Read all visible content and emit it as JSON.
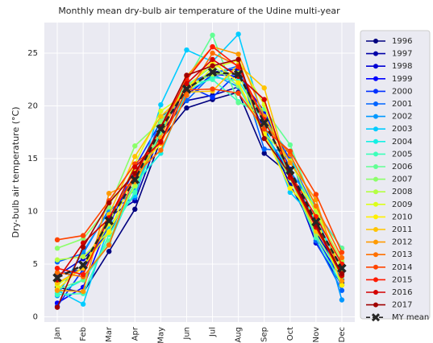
{
  "chart_data": {
    "type": "line",
    "title": "Monthly mean dry-bulb air temperature of the Udine multi-year",
    "y_label": "Dry-bulb air temperature (°C)",
    "categories": [
      "Jan",
      "Feb",
      "Mar",
      "Apr",
      "May",
      "Jun",
      "Jul",
      "Aug",
      "Sep",
      "Oct",
      "Nov",
      "Dec"
    ],
    "ylim": [
      -0.5,
      27.9
    ],
    "yticks": [
      0,
      5,
      10,
      15,
      20,
      25
    ],
    "grid": true,
    "legend": "outside right",
    "series": [
      {
        "name": "1996",
        "color": "#00007f",
        "values": [
          2.8,
          2.3,
          6.2,
          10.2,
          16.8,
          19.8,
          20.6,
          21.3,
          15.5,
          13.5,
          8.9,
          3.2
        ]
      },
      {
        "name": "1997",
        "color": "#0000a8",
        "values": [
          4.0,
          4.5,
          9.5,
          11.0,
          17.5,
          20.5,
          21.0,
          21.8,
          18.0,
          12.5,
          8.0,
          4.0
        ]
      },
      {
        "name": "1998",
        "color": "#0000d4",
        "values": [
          3.9,
          5.5,
          7.9,
          12.7,
          17.5,
          22.0,
          23.2,
          23.5,
          17.5,
          13.5,
          7.0,
          3.0
        ]
      },
      {
        "name": "1999",
        "color": "#0000ff",
        "values": [
          1.3,
          2.8,
          9.0,
          13.3,
          18.1,
          21.0,
          23.0,
          22.8,
          19.5,
          14.0,
          7.5,
          3.5
        ]
      },
      {
        "name": "2000",
        "color": "#0030ff",
        "values": [
          1.0,
          4.5,
          8.6,
          14.2,
          18.5,
          21.9,
          20.8,
          23.2,
          18.9,
          14.9,
          10.0,
          6.5
        ]
      },
      {
        "name": "2001",
        "color": "#0064ff",
        "values": [
          5.2,
          6.0,
          10.2,
          11.3,
          19.0,
          20.5,
          23.0,
          23.8,
          15.9,
          15.7,
          7.2,
          2.5
        ]
      },
      {
        "name": "2002",
        "color": "#0098ff",
        "values": [
          2.0,
          6.2,
          10.0,
          12.0,
          17.7,
          22.1,
          23.0,
          21.8,
          17.4,
          13.8,
          10.4,
          1.6
        ]
      },
      {
        "name": "2003",
        "color": "#00ccff",
        "values": [
          2.5,
          1.2,
          8.6,
          11.5,
          20.1,
          25.3,
          24.2,
          26.8,
          18.3,
          11.8,
          9.2,
          4.5
        ]
      },
      {
        "name": "2004",
        "color": "#14f0e4",
        "values": [
          2.2,
          3.5,
          6.9,
          12.6,
          15.5,
          21.4,
          22.7,
          22.4,
          18.5,
          15.5,
          8.6,
          5.2
        ]
      },
      {
        "name": "2005",
        "color": "#3cffba",
        "values": [
          2.1,
          2.2,
          7.8,
          11.8,
          17.6,
          22.0,
          22.5,
          20.4,
          19.0,
          13.2,
          7.5,
          3.0
        ]
      },
      {
        "name": "2006",
        "color": "#62ff94",
        "values": [
          2.6,
          3.5,
          7.2,
          12.8,
          17.4,
          22.4,
          26.7,
          20.3,
          19.7,
          16.3,
          9.9,
          6.5
        ]
      },
      {
        "name": "2007",
        "color": "#8cff6a",
        "values": [
          6.5,
          7.4,
          10.4,
          16.2,
          18.5,
          21.9,
          23.8,
          21.9,
          17.3,
          13.1,
          7.8,
          3.8
        ]
      },
      {
        "name": "2008",
        "color": "#b4ff42",
        "values": [
          5.4,
          5.7,
          8.1,
          12.4,
          17.9,
          21.8,
          23.0,
          23.1,
          17.4,
          14.8,
          9.8,
          5.3
        ]
      },
      {
        "name": "2009",
        "color": "#dcff1a",
        "values": [
          3.0,
          4.7,
          8.8,
          14.5,
          19.5,
          21.2,
          23.6,
          24.3,
          20.1,
          13.3,
          10.3,
          4.3
        ]
      },
      {
        "name": "2010",
        "color": "#fff000",
        "values": [
          2.6,
          4.8,
          8.0,
          13.7,
          16.4,
          21.6,
          24.2,
          22.2,
          17.3,
          12.2,
          9.4,
          3.0
        ]
      },
      {
        "name": "2011",
        "color": "#ffc400",
        "values": [
          3.2,
          4.6,
          9.7,
          15.2,
          19.0,
          21.3,
          21.4,
          23.9,
          21.7,
          13.2,
          8.1,
          4.9
        ]
      },
      {
        "name": "2012",
        "color": "#ff9a00",
        "values": [
          2.5,
          2.4,
          11.7,
          12.8,
          17.0,
          22.8,
          25.6,
          24.9,
          19.0,
          14.6,
          11.1,
          3.4
        ]
      },
      {
        "name": "2013",
        "color": "#ff7000",
        "values": [
          4.2,
          3.8,
          6.8,
          13.5,
          15.8,
          21.0,
          25.0,
          23.8,
          18.3,
          15.4,
          10.5,
          5.6
        ]
      },
      {
        "name": "2014",
        "color": "#ff4400",
        "values": [
          7.3,
          7.7,
          11.0,
          14.5,
          16.5,
          21.5,
          21.6,
          21.2,
          17.8,
          15.7,
          11.6,
          6.1
        ]
      },
      {
        "name": "2015",
        "color": "#ff1a00",
        "values": [
          4.6,
          4.0,
          9.4,
          13.4,
          17.9,
          22.5,
          25.6,
          23.7,
          18.7,
          13.6,
          9.5,
          5.0
        ]
      },
      {
        "name": "2016",
        "color": "#d40000",
        "values": [
          3.5,
          7.0,
          9.3,
          14.2,
          16.6,
          22.1,
          24.4,
          22.8,
          20.6,
          13.2,
          8.5,
          3.9
        ]
      },
      {
        "name": "2017",
        "color": "#a00000",
        "values": [
          0.9,
          6.6,
          10.8,
          13.6,
          18.0,
          22.9,
          23.8,
          24.4,
          16.9,
          13.5,
          8.7,
          4.1
        ]
      },
      {
        "name": "MY mean",
        "color": "#262626",
        "linestyle": "dashed",
        "marker": "x",
        "values": [
          3.7,
          4.9,
          9.1,
          13.0,
          17.8,
          21.6,
          23.2,
          23.0,
          18.4,
          13.9,
          9.0,
          4.6
        ]
      }
    ]
  }
}
